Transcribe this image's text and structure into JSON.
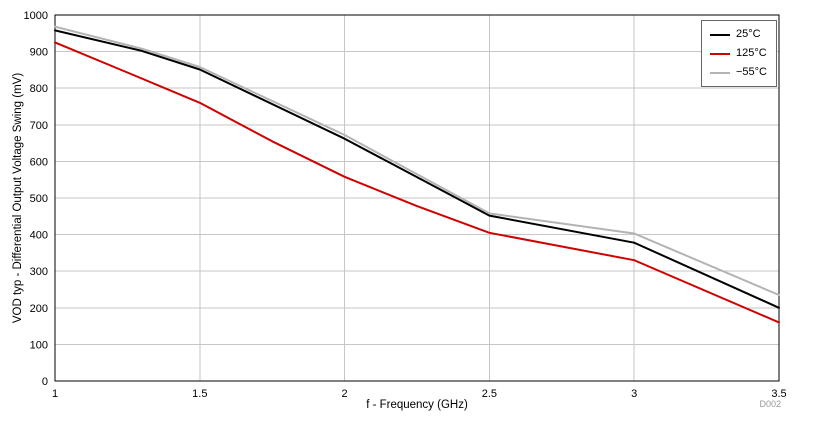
{
  "figure": {
    "code": "D002"
  },
  "chart_data": {
    "type": "line",
    "title": "",
    "xlabel": "f - Frequency (GHz)",
    "ylabel": "VOD typ - Differential Output Voltage Swing (mV)",
    "xlim": [
      1,
      3.5
    ],
    "ylim": [
      0,
      1000
    ],
    "xticks": [
      1,
      1.5,
      2,
      2.5,
      3,
      3.5
    ],
    "yticks": [
      0,
      100,
      200,
      300,
      400,
      500,
      600,
      700,
      800,
      900,
      1000
    ],
    "grid": true,
    "legend_position": "top-right-inside",
    "series": [
      {
        "name": "25°C",
        "color": "#000000",
        "points": [
          [
            1,
            958
          ],
          [
            1.3,
            902
          ],
          [
            1.5,
            851
          ],
          [
            2,
            662
          ],
          [
            2.5,
            452
          ],
          [
            3,
            378
          ],
          [
            3.5,
            200
          ]
        ]
      },
      {
        "name": "125°C",
        "color": "#d00000",
        "points": [
          [
            1,
            925
          ],
          [
            1.25,
            843
          ],
          [
            1.5,
            760
          ],
          [
            1.75,
            655
          ],
          [
            2,
            558
          ],
          [
            2.25,
            478
          ],
          [
            2.5,
            405
          ],
          [
            3,
            330
          ],
          [
            3.5,
            160
          ]
        ]
      },
      {
        "name": "−55°C",
        "color": "#b3b3b3",
        "points": [
          [
            1,
            968
          ],
          [
            1.3,
            908
          ],
          [
            1.5,
            858
          ],
          [
            2,
            672
          ],
          [
            2.5,
            458
          ],
          [
            3,
            403
          ],
          [
            3.5,
            235
          ]
        ]
      }
    ]
  }
}
